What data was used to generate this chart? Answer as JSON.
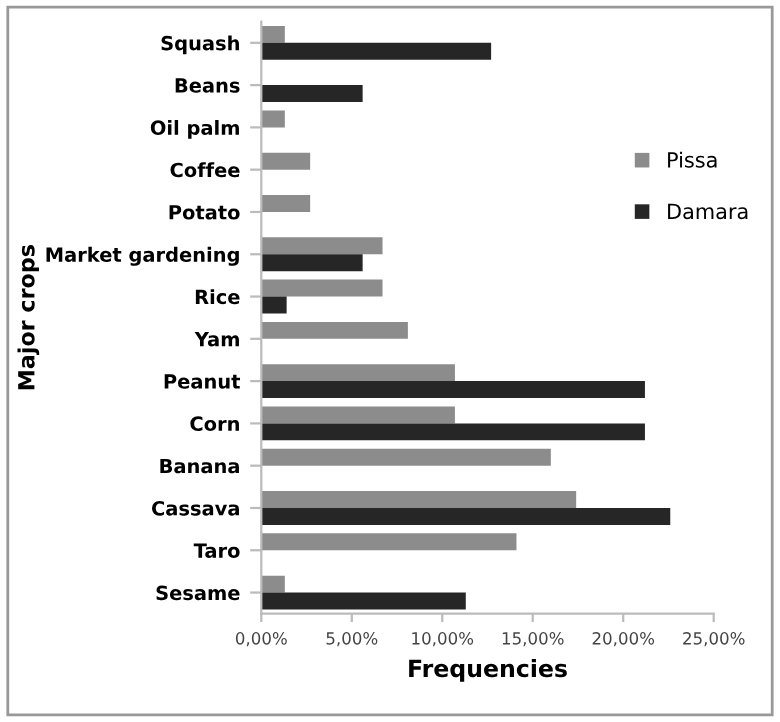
{
  "chart_data": {
    "type": "bar",
    "orientation": "horizontal",
    "xlabel": "Frequencies",
    "ylabel": "Major crops",
    "categories": [
      "Squash",
      "Beans",
      "Oil palm",
      "Coffee",
      "Potato",
      "Market gardening",
      "Rice",
      "Yam",
      "Peanut",
      "Corn",
      "Banana",
      "Cassava",
      "Taro",
      "Sesame"
    ],
    "series": [
      {
        "name": "Pissa",
        "color": "#8c8c8c",
        "values": [
          1.3,
          null,
          1.3,
          2.7,
          2.7,
          6.7,
          6.7,
          8.1,
          10.7,
          10.7,
          16.0,
          17.4,
          14.1,
          1.3
        ]
      },
      {
        "name": "Damara",
        "color": "#262626",
        "values": [
          12.7,
          5.6,
          null,
          null,
          null,
          5.6,
          1.4,
          null,
          21.2,
          21.2,
          null,
          22.6,
          null,
          11.3
        ]
      }
    ],
    "xlim": [
      0,
      25
    ],
    "xticks": [
      {
        "value": 0,
        "label": "0,00%"
      },
      {
        "value": 5,
        "label": "5,00%"
      },
      {
        "value": 10,
        "label": "10,00%"
      },
      {
        "value": 15,
        "label": "15,00%"
      },
      {
        "value": 20,
        "label": "20,00%"
      },
      {
        "value": 25,
        "label": "25,00%"
      }
    ],
    "grid": false,
    "legend": "right"
  }
}
